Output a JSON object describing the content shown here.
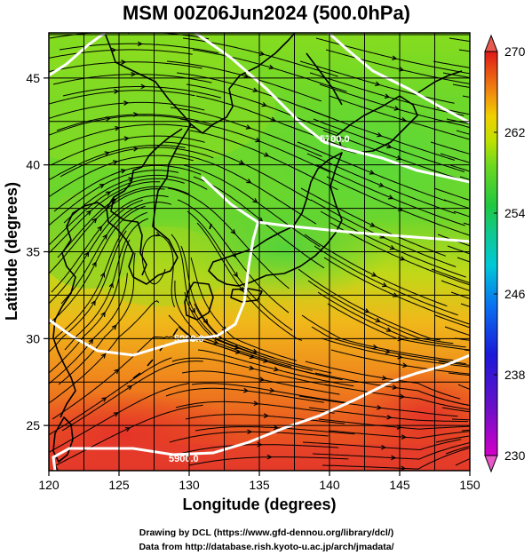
{
  "title": "MSM 00Z06Jun2024 (500.0hPa)",
  "x_axis": {
    "label": "Longitude (degrees)",
    "ticks": [
      "120",
      "125",
      "130",
      "135",
      "140",
      "145",
      "150"
    ]
  },
  "y_axis": {
    "label": "Latitude  (degrees)",
    "ticks": [
      "25",
      "30",
      "35",
      "40",
      "45"
    ]
  },
  "colorbar": {
    "ticks": [
      "230",
      "238",
      "246",
      "254",
      "262",
      "270"
    ]
  },
  "contours": {
    "labels": [
      "5900.0",
      "5900.0",
      "5700.0"
    ]
  },
  "credits": {
    "line1": "Drawing by DCL (https://www.gfd-dennou.org/library/dcl/)",
    "line2": "Data from http://database.rish.kyoto-u.ac.jp/arch/jmadata/"
  },
  "chart_data": {
    "type": "heatmap",
    "title": "MSM 00Z06Jun2024 (500.0hPa)",
    "xlabel": "Longitude (degrees)",
    "ylabel": "Latitude  (degrees)",
    "xlim": [
      120,
      150
    ],
    "ylim": [
      22.4,
      47.6
    ],
    "x_ticks": [
      120,
      125,
      130,
      135,
      140,
      145,
      150
    ],
    "y_ticks": [
      25,
      30,
      35,
      40,
      45
    ],
    "colorbar_range": [
      230,
      270
    ],
    "colorbar_ticks": [
      230,
      238,
      246,
      254,
      262,
      270
    ],
    "grid": true,
    "overlays": [
      "coastlines",
      "wind streamlines",
      "geopotential height contours"
    ],
    "temperature_field": [
      {
        "lat": 47,
        "lon": 122,
        "value": 261
      },
      {
        "lat": 46,
        "lon": 140,
        "value": 258
      },
      {
        "lat": 45,
        "lon": 148,
        "value": 258
      },
      {
        "lat": 42,
        "lon": 130,
        "value": 259
      },
      {
        "lat": 40,
        "lon": 140,
        "value": 257
      },
      {
        "lat": 38,
        "lon": 145,
        "value": 257
      },
      {
        "lat": 37,
        "lon": 123,
        "value": 258
      },
      {
        "lat": 36,
        "lon": 135,
        "value": 256
      },
      {
        "lat": 33,
        "lon": 125,
        "value": 262
      },
      {
        "lat": 32,
        "lon": 140,
        "value": 261
      },
      {
        "lat": 30,
        "lon": 128,
        "value": 265
      },
      {
        "lat": 28,
        "lon": 145,
        "value": 264
      },
      {
        "lat": 26,
        "lon": 130,
        "value": 267
      },
      {
        "lat": 24,
        "lon": 125,
        "value": 268
      },
      {
        "lat": 23,
        "lon": 145,
        "value": 267
      }
    ]
  }
}
